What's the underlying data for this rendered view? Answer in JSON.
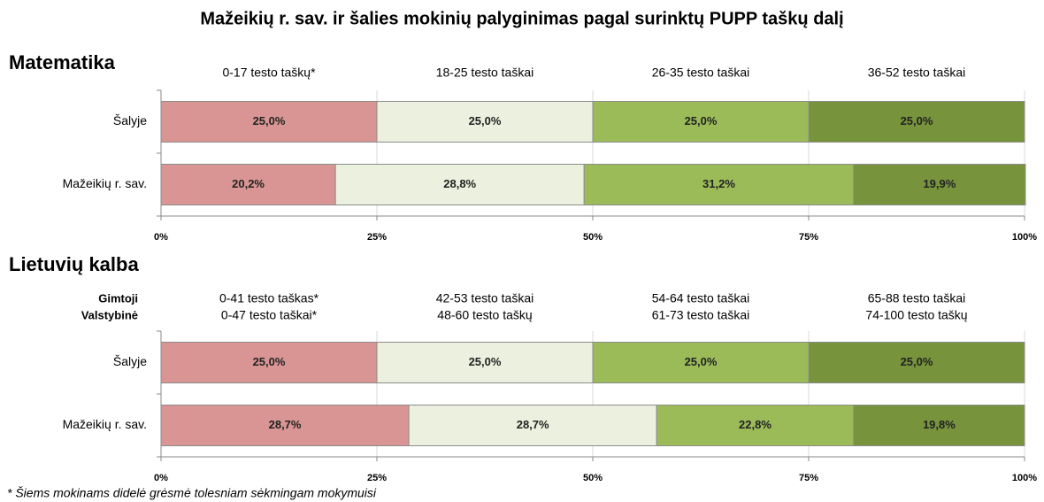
{
  "title": "Mažeikių r. sav. ir šalies mokinių palyginimas pagal surinktų PUPP taškų dalį",
  "footnote": "* Šiems mokinams didelė grėsmė tolesniam sėkmingam mokymuisi",
  "chart_data": [
    {
      "type": "bar",
      "orientation": "horizontal",
      "stacked": true,
      "title": "Matematika",
      "categories": [
        "Šalyje",
        "Mažeikių r. sav."
      ],
      "series": [
        {
          "name": "0-17 testo taškų*",
          "color": "#d99594",
          "values": [
            25.0,
            20.2
          ],
          "value_labels": [
            "25,0%",
            "20,2%"
          ]
        },
        {
          "name": "18-25 testo taškai",
          "color": "#ebf1de",
          "values": [
            25.0,
            28.8
          ],
          "value_labels": [
            "25,0%",
            "28,8%"
          ]
        },
        {
          "name": "26-35 testo taškai",
          "color": "#9bbb59",
          "values": [
            25.0,
            31.2
          ],
          "value_labels": [
            "25,0%",
            "31,2%"
          ]
        },
        {
          "name": "36-52 testo taškai",
          "color": "#77933c",
          "values": [
            25.0,
            19.9
          ],
          "value_labels": [
            "25,0%",
            "19,9%"
          ]
        }
      ],
      "xlim": [
        0,
        100
      ],
      "xticks": [
        {
          "value": 0,
          "label": "0%"
        },
        {
          "value": 25,
          "label": "25%"
        },
        {
          "value": 50,
          "label": "50%"
        },
        {
          "value": 75,
          "label": "75%"
        },
        {
          "value": 100,
          "label": "100%"
        }
      ],
      "grid": true
    },
    {
      "type": "bar",
      "orientation": "horizontal",
      "stacked": true,
      "title": "Lietuvių kalba",
      "legend_row_labels": [
        "Gimtoji",
        "Valstybinė"
      ],
      "categories": [
        "Šalyje",
        "Mažeikių r. sav."
      ],
      "series": [
        {
          "name": [
            "0-41 testo taškas*",
            "0-47 testo taškai*"
          ],
          "color": "#d99594",
          "values": [
            25.0,
            28.7
          ],
          "value_labels": [
            "25,0%",
            "28,7%"
          ]
        },
        {
          "name": [
            "42-53 testo taškai",
            "48-60 testo taškų"
          ],
          "color": "#ebf1de",
          "values": [
            25.0,
            28.7
          ],
          "value_labels": [
            "25,0%",
            "28,7%"
          ]
        },
        {
          "name": [
            "54-64 testo taškai",
            "61-73 testo taškai"
          ],
          "color": "#9bbb59",
          "values": [
            25.0,
            22.8
          ],
          "value_labels": [
            "25,0%",
            "22,8%"
          ]
        },
        {
          "name": [
            "65-88 testo taškai",
            "74-100 testo taškų"
          ],
          "color": "#77933c",
          "values": [
            25.0,
            19.8
          ],
          "value_labels": [
            "25,0%",
            "19,8%"
          ]
        }
      ],
      "xlim": [
        0,
        100
      ],
      "xticks": [
        {
          "value": 0,
          "label": "0%"
        },
        {
          "value": 25,
          "label": "25%"
        },
        {
          "value": 50,
          "label": "50%"
        },
        {
          "value": 75,
          "label": "75%"
        },
        {
          "value": 100,
          "label": "100%"
        }
      ],
      "grid": true
    }
  ]
}
